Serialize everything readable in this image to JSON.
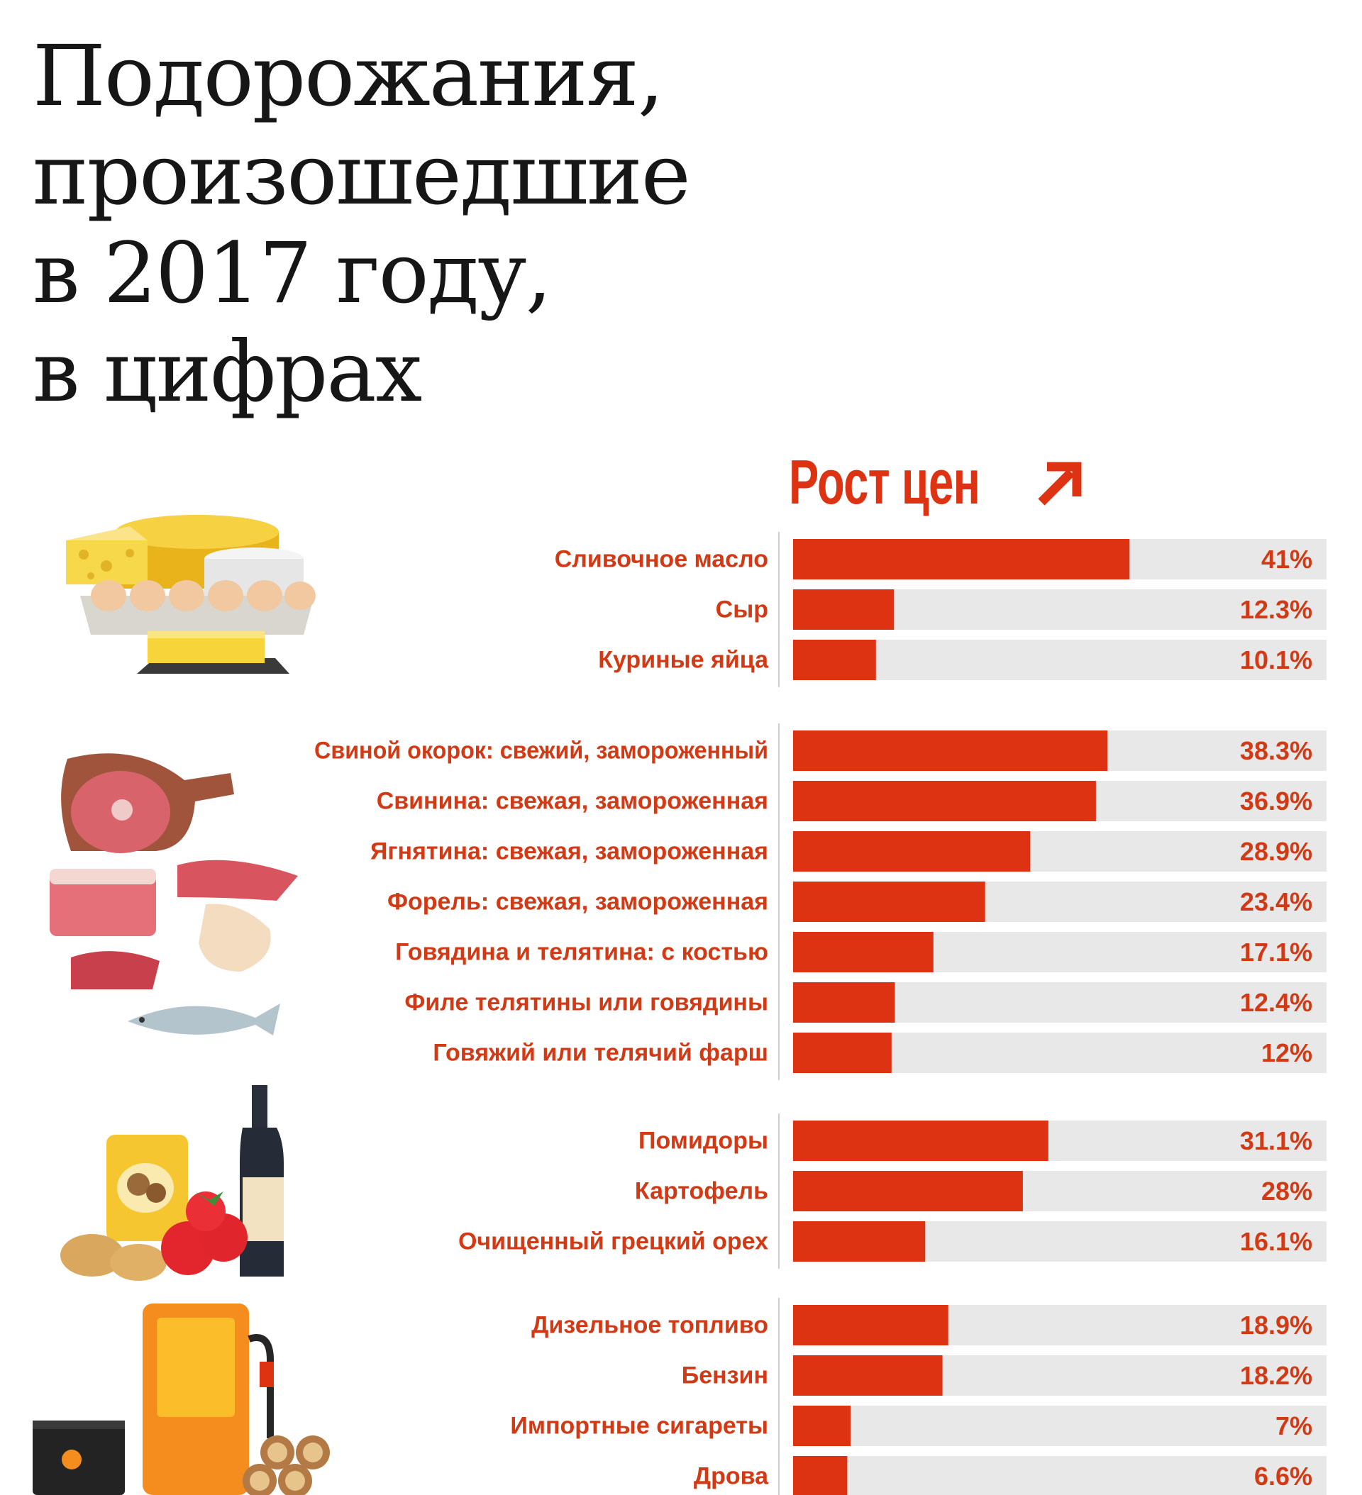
{
  "chart_data": {
    "type": "bar",
    "orientation": "horizontal",
    "title": "Подорожания, произошедшие в 2017 году, в цифрах",
    "title_lines": [
      "Подорожания,",
      "произошедшие",
      "в 2017 году,",
      "в цифрах"
    ],
    "subtitle": "Рост цен",
    "value_range": [
      0,
      65
    ],
    "colors": {
      "bar": "#dd3313",
      "track": "#e8e8e8",
      "label": "#d13a14"
    },
    "groups": [
      {
        "icon": "dairy-eggs-icon",
        "items": [
          {
            "label": "Сливочное масло",
            "value": 41,
            "value_label": "41%"
          },
          {
            "label": "Сыр",
            "value": 12.3,
            "value_label": "12.3%"
          },
          {
            "label": "Куриные яйца",
            "value": 10.1,
            "value_label": "10.1%"
          }
        ]
      },
      {
        "icon": "meat-fish-icon",
        "items": [
          {
            "label": "Свиной окорок: свежий, замороженный",
            "value": 38.3,
            "value_label": "38.3%"
          },
          {
            "label": "Свинина: свежая, замороженная",
            "value": 36.9,
            "value_label": "36.9%"
          },
          {
            "label": "Ягнятина: свежая, замороженная",
            "value": 28.9,
            "value_label": "28.9%"
          },
          {
            "label": "Форель: свежая, замороженная",
            "value": 23.4,
            "value_label": "23.4%"
          },
          {
            "label": "Говядина и телятина: с костью",
            "value": 17.1,
            "value_label": "17.1%"
          },
          {
            "label": "Филе телятины или говядины",
            "value": 12.4,
            "value_label": "12.4%"
          },
          {
            "label": "Говяжий или телячий фарш",
            "value": 12,
            "value_label": "12%"
          }
        ]
      },
      {
        "icon": "vegetables-wine-icon",
        "items": [
          {
            "label": "Помидоры",
            "value": 31.1,
            "value_label": "31.1%"
          },
          {
            "label": "Картофель",
            "value": 28,
            "value_label": "28%"
          },
          {
            "label": "Очищенный грецкий орех",
            "value": 16.1,
            "value_label": "16.1%"
          }
        ]
      },
      {
        "icon": "fuel-firewood-icon",
        "items": [
          {
            "label": "Дизельное топливо",
            "value": 18.9,
            "value_label": "18.9%"
          },
          {
            "label": "Бензин",
            "value": 18.2,
            "value_label": "18.2%"
          },
          {
            "label": "Импортные сигареты",
            "value": 7,
            "value_label": "7%"
          },
          {
            "label": "Дрова",
            "value": 6.6,
            "value_label": "6.6%"
          }
        ]
      }
    ]
  }
}
